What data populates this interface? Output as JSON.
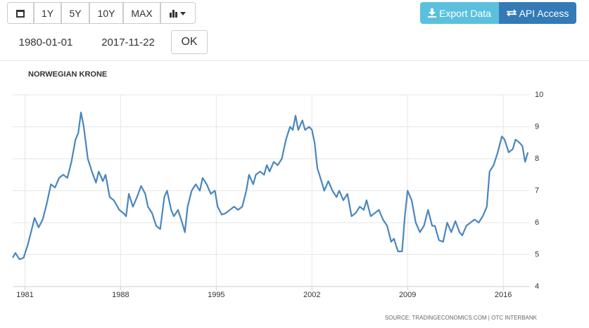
{
  "toolbar": {
    "buttons": [
      "1Y",
      "5Y",
      "10Y",
      "MAX"
    ],
    "actions": [
      "Export Data",
      "API Access"
    ]
  },
  "dates": {
    "start": "1980-01-01",
    "end": "2017-11-22",
    "submit": "OK"
  },
  "chart_data": {
    "type": "line",
    "title": "NORWEGIAN KRONE",
    "source": "SOURCE: TRADINGECONOMICS.COM | OTC INTERBANK",
    "color": "#4a86bd",
    "grid": true,
    "xlim": [
      1980.1,
      2017.9
    ],
    "xticks": [
      1981,
      1988,
      1995,
      2002,
      2009,
      2016
    ],
    "ylim": [
      4,
      10
    ],
    "yticks": [
      4,
      5,
      6,
      7,
      8,
      9,
      10
    ],
    "x": [
      1980.1,
      1980.3,
      1980.6,
      1980.9,
      1981.2,
      1981.5,
      1981.7,
      1982.0,
      1982.3,
      1982.6,
      1982.9,
      1983.2,
      1983.5,
      1983.8,
      1984.1,
      1984.4,
      1984.7,
      1984.9,
      1985.1,
      1985.3,
      1985.6,
      1985.9,
      1986.2,
      1986.4,
      1986.7,
      1986.9,
      1987.2,
      1987.5,
      1987.9,
      1988.2,
      1988.4,
      1988.6,
      1988.9,
      1989.2,
      1989.5,
      1989.8,
      1990.0,
      1990.3,
      1990.6,
      1990.9,
      1991.2,
      1991.4,
      1991.7,
      1991.9,
      1992.2,
      1992.5,
      1992.7,
      1992.9,
      1993.2,
      1993.5,
      1993.8,
      1994.0,
      1994.3,
      1994.6,
      1994.9,
      1995.1,
      1995.4,
      1995.7,
      1996.0,
      1996.3,
      1996.6,
      1996.9,
      1997.2,
      1997.4,
      1997.7,
      1997.9,
      1998.2,
      1998.5,
      1998.7,
      1998.9,
      1999.2,
      1999.5,
      1999.8,
      2000.1,
      2000.4,
      2000.6,
      2000.8,
      2001.0,
      2001.3,
      2001.5,
      2001.8,
      2002.0,
      2002.2,
      2002.4,
      2002.7,
      2002.9,
      2003.2,
      2003.5,
      2003.8,
      2004.0,
      2004.3,
      2004.6,
      2004.9,
      2005.2,
      2005.5,
      2005.8,
      2006.0,
      2006.3,
      2006.6,
      2006.9,
      2007.2,
      2007.5,
      2007.8,
      2008.0,
      2008.3,
      2008.6,
      2008.8,
      2009.0,
      2009.3,
      2009.6,
      2009.9,
      2010.2,
      2010.5,
      2010.8,
      2011.0,
      2011.3,
      2011.6,
      2011.9,
      2012.2,
      2012.5,
      2012.8,
      2013.0,
      2013.3,
      2013.6,
      2013.9,
      2014.2,
      2014.5,
      2014.8,
      2015.0,
      2015.3,
      2015.6,
      2015.9,
      2016.1,
      2016.4,
      2016.7,
      2016.9,
      2017.2,
      2017.4,
      2017.6,
      2017.8
    ],
    "values": [
      4.9,
      5.05,
      4.85,
      4.9,
      5.3,
      5.8,
      6.15,
      5.85,
      6.1,
      6.6,
      7.2,
      7.1,
      7.4,
      7.5,
      7.4,
      7.9,
      8.6,
      8.8,
      9.45,
      9.0,
      8.0,
      7.6,
      7.25,
      7.6,
      7.3,
      7.5,
      6.8,
      6.7,
      6.4,
      6.3,
      6.2,
      6.9,
      6.5,
      6.8,
      7.15,
      6.9,
      6.5,
      6.3,
      5.9,
      5.8,
      6.8,
      7.0,
      6.4,
      6.2,
      6.4,
      6.0,
      5.7,
      6.5,
      7.0,
      7.2,
      7.0,
      7.4,
      7.2,
      6.9,
      7.0,
      6.5,
      6.25,
      6.3,
      6.4,
      6.5,
      6.4,
      6.5,
      7.0,
      7.5,
      7.2,
      7.5,
      7.6,
      7.5,
      7.8,
      7.6,
      7.9,
      7.8,
      8.0,
      8.6,
      9.0,
      8.9,
      9.35,
      8.9,
      9.2,
      8.9,
      9.0,
      8.9,
      8.5,
      7.7,
      7.3,
      7.0,
      7.3,
      7.0,
      6.8,
      7.0,
      6.7,
      6.9,
      6.2,
      6.3,
      6.5,
      6.4,
      6.7,
      6.2,
      6.3,
      6.4,
      6.1,
      5.9,
      5.4,
      5.5,
      5.1,
      5.1,
      6.2,
      7.0,
      6.7,
      6.0,
      5.7,
      5.9,
      6.4,
      5.9,
      5.9,
      5.45,
      5.4,
      6.0,
      5.7,
      6.05,
      5.7,
      5.6,
      5.9,
      6.0,
      6.1,
      6.0,
      6.2,
      6.5,
      7.6,
      7.8,
      8.2,
      8.7,
      8.6,
      8.2,
      8.3,
      8.6,
      8.5,
      8.4,
      7.9,
      8.2
    ]
  }
}
